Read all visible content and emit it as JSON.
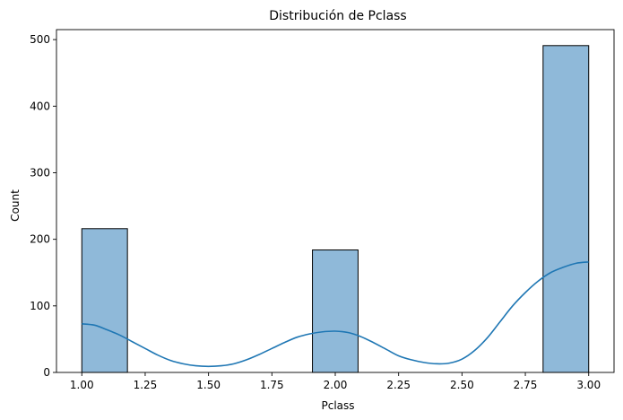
{
  "chart_data": {
    "type": "bar",
    "title": "Distribución de Pclass",
    "xlabel": "Pclass",
    "ylabel": "Count",
    "xlim": [
      0.9,
      3.1
    ],
    "ylim": [
      0,
      515
    ],
    "x_ticks": [
      "1.00",
      "1.25",
      "1.50",
      "1.75",
      "2.00",
      "2.25",
      "2.50",
      "2.75",
      "3.00"
    ],
    "y_ticks": [
      "0",
      "100",
      "200",
      "300",
      "400",
      "500"
    ],
    "bins": [
      {
        "x0": 1.0,
        "x1": 1.18,
        "count": 216
      },
      {
        "x0": 1.18,
        "x1": 1.36,
        "count": 0
      },
      {
        "x0": 1.36,
        "x1": 1.55,
        "count": 0
      },
      {
        "x0": 1.55,
        "x1": 1.73,
        "count": 0
      },
      {
        "x0": 1.73,
        "x1": 1.91,
        "count": 0
      },
      {
        "x0": 1.91,
        "x1": 2.09,
        "count": 184
      },
      {
        "x0": 2.09,
        "x1": 2.27,
        "count": 0
      },
      {
        "x0": 2.27,
        "x1": 2.45,
        "count": 0
      },
      {
        "x0": 2.45,
        "x1": 2.64,
        "count": 0
      },
      {
        "x0": 2.64,
        "x1": 2.82,
        "count": 0
      },
      {
        "x0": 2.82,
        "x1": 3.0,
        "count": 491
      }
    ],
    "kde": {
      "x": [
        1.0,
        1.05,
        1.1,
        1.15,
        1.2,
        1.25,
        1.3,
        1.35,
        1.4,
        1.45,
        1.5,
        1.55,
        1.6,
        1.65,
        1.7,
        1.75,
        1.8,
        1.85,
        1.9,
        1.95,
        2.0,
        2.05,
        2.1,
        2.15,
        2.2,
        2.25,
        2.3,
        2.35,
        2.4,
        2.45,
        2.5,
        2.55,
        2.6,
        2.65,
        2.7,
        2.75,
        2.8,
        2.85,
        2.9,
        2.95,
        3.0
      ],
      "y": [
        73,
        71,
        64,
        56,
        46,
        36,
        26,
        18,
        13,
        10,
        9,
        10,
        13,
        19,
        27,
        36,
        45,
        53,
        58,
        61,
        62,
        60,
        54,
        45,
        35,
        25,
        19,
        15,
        13,
        14,
        20,
        33,
        52,
        76,
        100,
        120,
        137,
        150,
        158,
        164,
        166
      ]
    },
    "colors": {
      "bar_fill": "#8fb9d9",
      "bar_edge": "#000000",
      "kde_line": "#1f77b4",
      "axis": "#000000"
    },
    "grid": false,
    "legend": "none"
  }
}
